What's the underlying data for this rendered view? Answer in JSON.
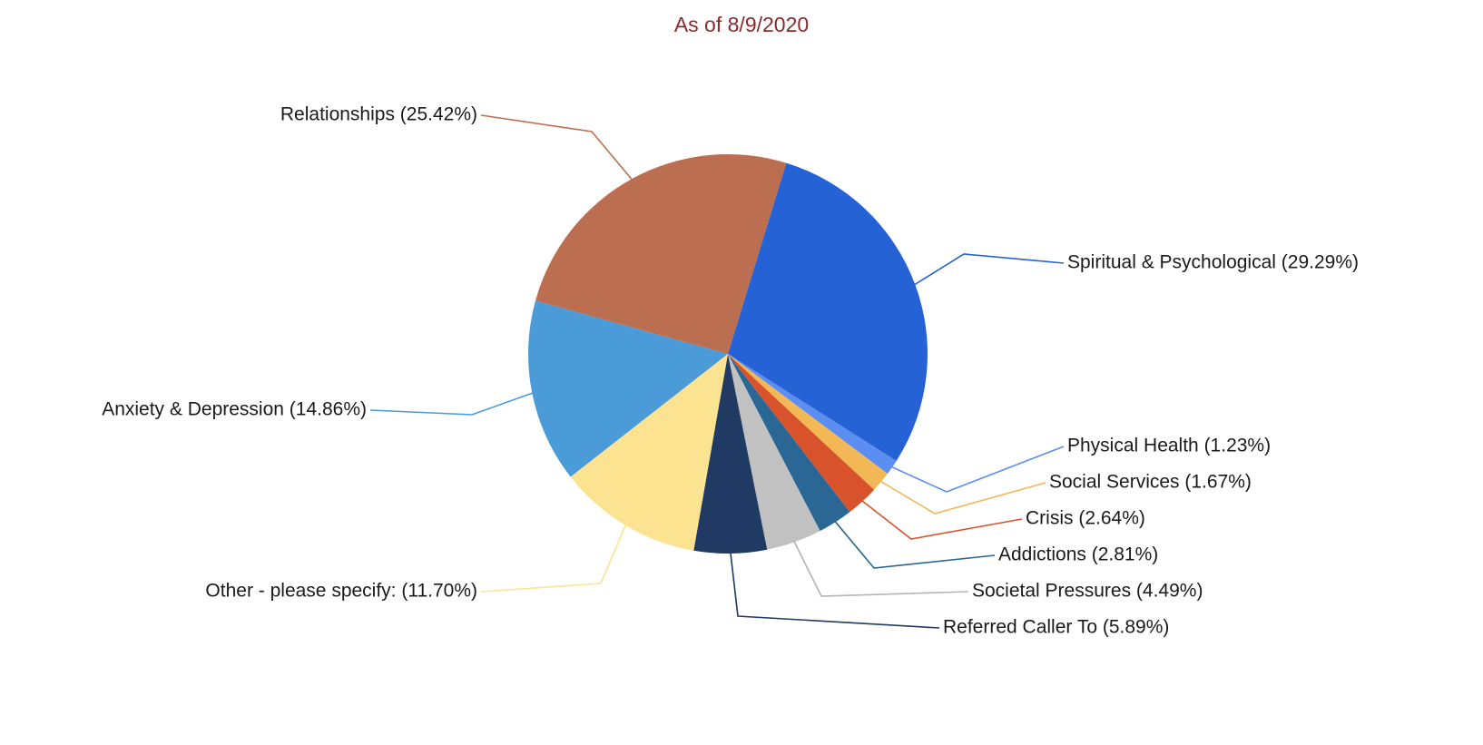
{
  "chart_data": {
    "type": "pie",
    "subtitle": "As of 8/9/2020",
    "slices": [
      {
        "label": "Spiritual & Psychological",
        "value": 29.29,
        "label_text": "Spiritual & Psychological (29.29%)",
        "color": "#2462d6"
      },
      {
        "label": "Physical Health",
        "value": 1.23,
        "label_text": "Physical Health (1.23%)",
        "color": "#5b8ef0"
      },
      {
        "label": "Social Services",
        "value": 1.67,
        "label_text": "Social Services (1.67%)",
        "color": "#f2b855"
      },
      {
        "label": "Crisis",
        "value": 2.64,
        "label_text": "Crisis (2.64%)",
        "color": "#d8532b"
      },
      {
        "label": "Addictions",
        "value": 2.81,
        "label_text": "Addictions (2.81%)",
        "color": "#2a6795"
      },
      {
        "label": "Societal Pressures",
        "value": 4.49,
        "label_text": "Societal Pressures (4.49%)",
        "color": "#c1c1c1"
      },
      {
        "label": "Referred Caller To",
        "value": 5.89,
        "label_text": "Referred Caller To (5.89%)",
        "color": "#203a63"
      },
      {
        "label": "Other - please specify:",
        "value": 11.7,
        "label_text": "Other - please specify: (11.70%)",
        "color": "#fbe391"
      },
      {
        "label": "Anxiety & Depression",
        "value": 14.86,
        "label_text": "Anxiety & Depression (14.86%)",
        "color": "#4a9bd8"
      },
      {
        "label": "Relationships",
        "value": 25.42,
        "label_text": "Relationships (25.42%)",
        "color": "#bb6f50"
      }
    ],
    "start_angle_deg": 17,
    "direction": "clockwise",
    "legend": "none",
    "label_style": "outside-with-leader-lines"
  }
}
